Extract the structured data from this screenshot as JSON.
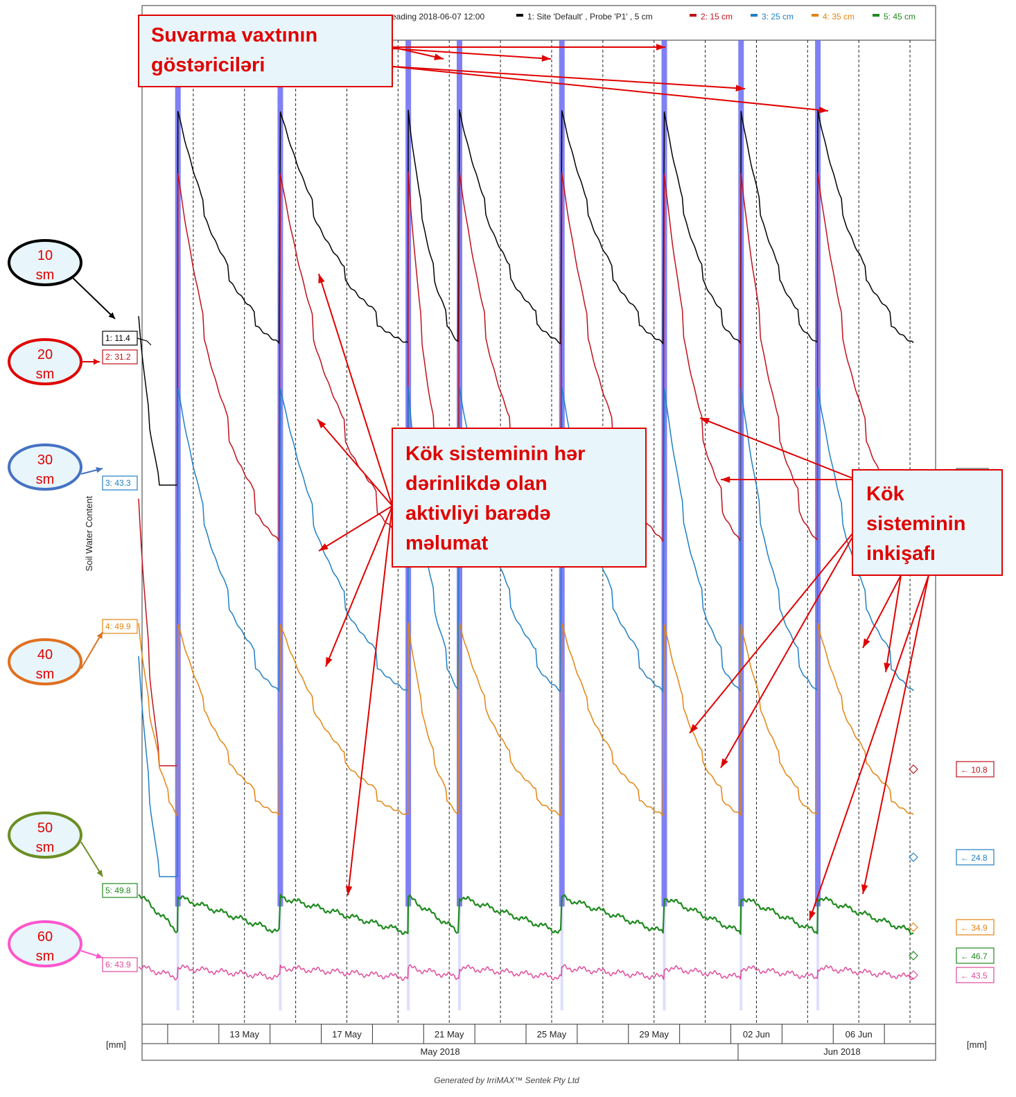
{
  "chart_data": {
    "type": "line",
    "legend_header": "eading 2018-06-07 12:00",
    "legend": [
      {
        "text": "1: Site 'Default' , Probe 'P1' , 5 cm",
        "color": "#000000"
      },
      {
        "text": "2: 15 cm",
        "color": "#c0101a"
      },
      {
        "text": "3: 25 cm",
        "color": "#1f7fc4"
      },
      {
        "text": "4: 35 cm",
        "color": "#e38410"
      },
      {
        "text": "5: 45 cm",
        "color": "#1e8a1e"
      }
    ],
    "ylabel": "Soil Water Content",
    "y_unit_left": "[mm]",
    "y_unit_right": "[mm]",
    "x_range": [
      "2018-05-09",
      "2018-06-09"
    ],
    "x_ticks": [
      "13 May",
      "17 May",
      "21 May",
      "25 May",
      "29 May",
      "02 Jun",
      "06 Jun"
    ],
    "month_labels": [
      "May 2018",
      "Jun 2018"
    ],
    "irrigation_dates": [
      "2018-05-10",
      "2018-05-14",
      "2018-05-19",
      "2018-05-21",
      "2018-05-25",
      "2018-05-29",
      "2018-06-01",
      "2018-06-04"
    ],
    "series": [
      {
        "id": 1,
        "color": "#000000",
        "start_label": "1: 11.4",
        "end_label": "",
        "level_top": 160,
        "level_bottom": 700
      },
      {
        "id": 2,
        "color": "#c0101a",
        "start_label": "2: 31.2",
        "end_label": "10.8",
        "level_top": 250,
        "level_bottom": 1105
      },
      {
        "id": 3,
        "color": "#1f7fc4",
        "start_label": "3: 43.3",
        "end_label": "24.8",
        "level_top": 560,
        "level_bottom": 1265
      },
      {
        "id": 4,
        "color": "#e38410",
        "start_label": "4: 49.9",
        "end_label": "34.9",
        "level_top": 900,
        "level_bottom": 1345
      },
      {
        "id": 5,
        "color": "#1e8a1e",
        "start_label": "5: 49.8",
        "end_label": "46.7",
        "level_top": 1290,
        "level_bottom": 1380
      },
      {
        "id": 6,
        "color": "#e04b9b",
        "start_label": "6: 43.9",
        "end_label": "43.5",
        "level_top": 1395,
        "level_bottom": 1420
      }
    ],
    "grid": true
  },
  "depth_markers": [
    {
      "line1": "10",
      "line2": "sm",
      "color": "#000000"
    },
    {
      "line1": "20",
      "line2": "sm",
      "color": "#e00000"
    },
    {
      "line1": "30",
      "line2": "sm",
      "color": "#4472c4"
    },
    {
      "line1": "40",
      "line2": "sm",
      "color": "#e07020"
    },
    {
      "line1": "50",
      "line2": "sm",
      "color": "#6b8e23"
    },
    {
      "line1": "60",
      "line2": "sm",
      "color": "#ff55cc"
    }
  ],
  "callouts": {
    "irrigation": [
      "Suvarma vaxtının",
      "göstəriciləri"
    ],
    "root_activity": [
      "Kök sisteminin hər",
      "dərinlikdə olan",
      "aktivliyi barədə",
      "məlumat"
    ],
    "root_development": [
      "Kök",
      "sisteminin",
      "inkişafı"
    ]
  },
  "footer": "Generated by IrriMAX™ Sentek Pty Ltd"
}
